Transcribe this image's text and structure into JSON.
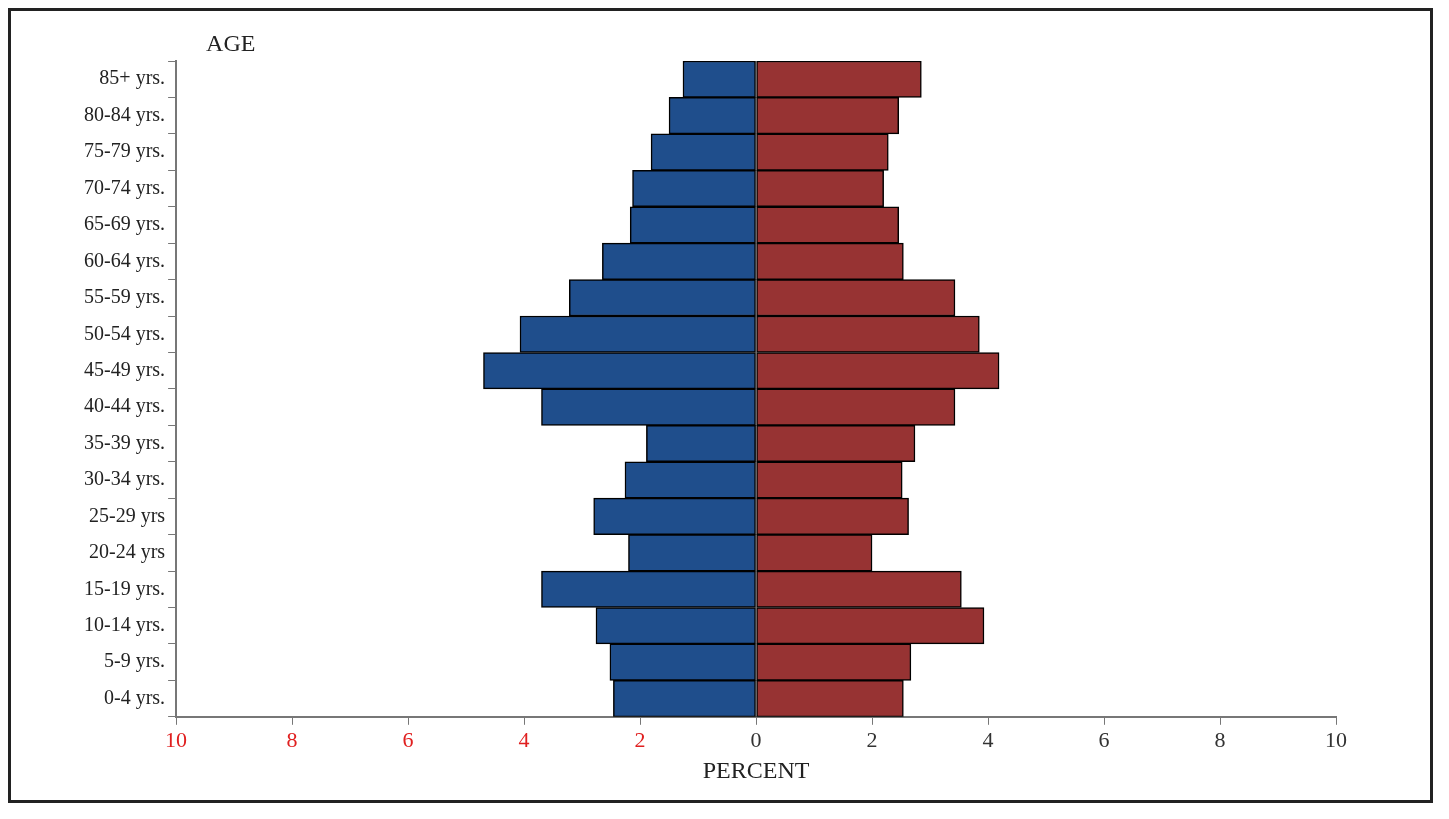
{
  "chart_data": {
    "type": "bar",
    "orientation": "horizontal",
    "stacked": true,
    "xlabel": "PERCENT",
    "ylabel": "AGE",
    "categories": [
      "85+ yrs.",
      "80-84 yrs.",
      "75-79 yrs.",
      "70-74 yrs.",
      "65-69 yrs.",
      "60-64 yrs.",
      "55-59 yrs.",
      "50-54 yrs.",
      "45-49 yrs.",
      "40-44 yrs.",
      "35-39 yrs.",
      "30-34 yrs.",
      "25-29 yrs",
      "20-24 yrs",
      "15-19 yrs.",
      "10-14 yrs.",
      "5-9 yrs.",
      "0-4 yrs."
    ],
    "series": [
      {
        "color": "#1f4e8c",
        "values": [
          -1.26,
          -1.5,
          -1.81,
          -2.13,
          -2.17,
          -2.65,
          -3.22,
          -4.07,
          -4.7,
          -3.7,
          -1.89,
          -2.26,
          -2.8,
          -2.2,
          -3.7,
          -2.76,
          -2.52,
          -2.46
        ]
      },
      {
        "color": "#973333",
        "values": [
          2.85,
          2.46,
          2.28,
          2.2,
          2.46,
          2.54,
          3.43,
          3.85,
          4.19,
          3.43,
          2.74,
          2.52,
          2.63,
          2.0,
          3.54,
          3.93,
          2.67,
          2.54
        ]
      }
    ],
    "xlim": [
      -10,
      10
    ],
    "xticks": [
      {
        "value": -10,
        "label": "10"
      },
      {
        "value": -8,
        "label": "8"
      },
      {
        "value": -6,
        "label": "6"
      },
      {
        "value": -4,
        "label": "4"
      },
      {
        "value": -2,
        "label": "2"
      },
      0,
      2,
      4,
      6,
      8,
      10
    ],
    "grid": false,
    "legend": false
  }
}
